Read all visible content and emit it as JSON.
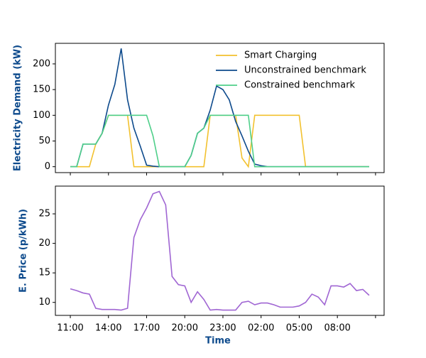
{
  "chart_data": [
    {
      "type": "line",
      "ylabel": "Electricity Demand (kW)",
      "ylim": [
        -11.5,
        240
      ],
      "yticks": [
        0,
        50,
        100,
        150,
        200
      ],
      "legend": "upper right",
      "series": [
        {
          "name": "Smart Charging",
          "color": "#f2c12e",
          "values": [
            0,
            0,
            0,
            0,
            44,
            65,
            100,
            100,
            100,
            100,
            0,
            0,
            0,
            0,
            0,
            0,
            0,
            0,
            0,
            0,
            0,
            0,
            100,
            100,
            100,
            100,
            100,
            17,
            0,
            100,
            100,
            100,
            100,
            100,
            100,
            100,
            100,
            0,
            0,
            0,
            0,
            0,
            0,
            0,
            0,
            0,
            0,
            0,
            null
          ]
        },
        {
          "name": "Unconstrained benchmark",
          "color": "#0d4a8c",
          "values": [
            0,
            0,
            44,
            44,
            44,
            65,
            120,
            160,
            230,
            130,
            75,
            40,
            3,
            1,
            0,
            0,
            0,
            0,
            0,
            22,
            65,
            75,
            110,
            157,
            150,
            130,
            88,
            60,
            30,
            5,
            2,
            0,
            0,
            0,
            0,
            0,
            0,
            0,
            0,
            0,
            0,
            0,
            0,
            0,
            0,
            0,
            0,
            0,
            null
          ]
        },
        {
          "name": "Constrained benchmark",
          "color": "#4fcf8a",
          "values": [
            0,
            0,
            44,
            44,
            44,
            65,
            100,
            100,
            100,
            100,
            100,
            100,
            100,
            60,
            0,
            0,
            0,
            0,
            0,
            22,
            65,
            75,
            100,
            100,
            100,
            100,
            100,
            100,
            100,
            0,
            0,
            0,
            0,
            0,
            0,
            0,
            0,
            0,
            0,
            0,
            0,
            0,
            0,
            0,
            0,
            0,
            0,
            0,
            null
          ]
        }
      ]
    },
    {
      "type": "line",
      "ylabel": "E. Price (p/kWh)",
      "xlabel": "Time",
      "ylim": [
        7.8,
        29.7
      ],
      "yticks": [
        10,
        15,
        20,
        25
      ],
      "categories": [
        "11:00",
        null,
        null,
        null,
        null,
        null,
        "14:00",
        null,
        null,
        null,
        null,
        null,
        "17:00",
        null,
        null,
        null,
        null,
        null,
        "20:00",
        null,
        null,
        null,
        null,
        null,
        "23:00",
        null,
        null,
        null,
        null,
        null,
        "02:00",
        null,
        null,
        null,
        null,
        null,
        "05:00",
        null,
        null,
        null,
        null,
        null,
        "08:00",
        null,
        null,
        null,
        null,
        null,
        null
      ],
      "series": [
        {
          "color": "#a066d3",
          "values": [
            12.3,
            12.0,
            11.6,
            11.4,
            9.0,
            8.8,
            8.8,
            8.8,
            8.7,
            9.0,
            21.0,
            24.0,
            26.0,
            28.4,
            28.8,
            26.5,
            14.4,
            13.0,
            12.8,
            10.0,
            11.8,
            10.5,
            8.7,
            8.8,
            8.7,
            8.7,
            8.7,
            10.0,
            10.2,
            9.6,
            9.9,
            9.9,
            9.6,
            9.2,
            9.2,
            9.2,
            9.4,
            10.0,
            11.4,
            10.9,
            9.6,
            12.8,
            12.8,
            12.6,
            13.2,
            12.0,
            12.2,
            11.2,
            null
          ]
        }
      ]
    }
  ]
}
